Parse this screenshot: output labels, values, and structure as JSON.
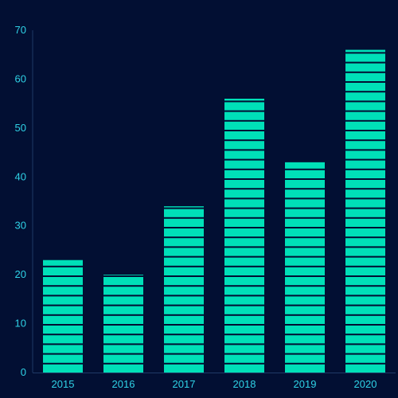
{
  "chart_data": {
    "type": "bar",
    "categories": [
      "2015",
      "2016",
      "2017",
      "2018",
      "2019",
      "2020"
    ],
    "values": [
      23,
      20,
      34,
      56,
      43,
      66
    ],
    "title": "",
    "xlabel": "",
    "ylabel": "",
    "ylim": [
      0,
      70
    ],
    "yticks": [
      0,
      10,
      20,
      30,
      40,
      50,
      60,
      70
    ],
    "grid": false,
    "legend": "none",
    "bar_style": "segmented-stripes"
  },
  "colors": {
    "background": "#020f33",
    "bar": "#00e0b8",
    "axis_line": "#1f3a66",
    "tick_text": "#2fd2e6"
  }
}
